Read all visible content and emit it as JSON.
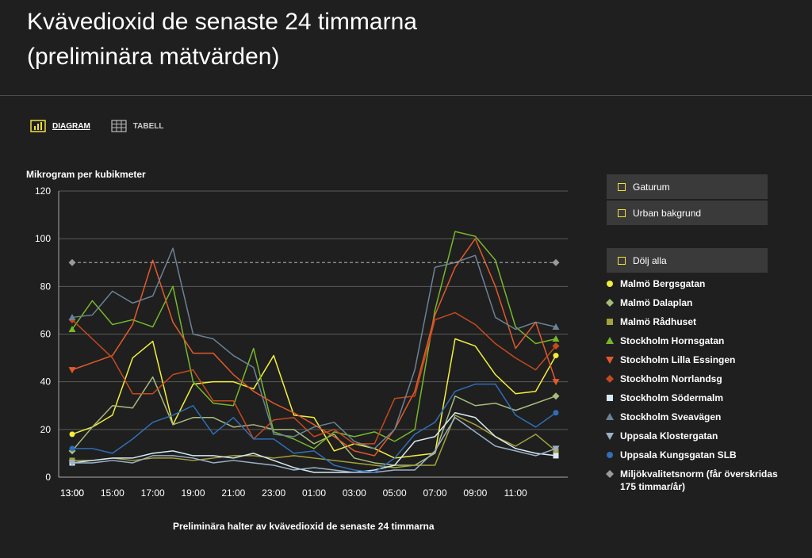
{
  "page": {
    "title_line1": "Kvävedioxid de senaste 24 timmarna",
    "title_line2": "(preliminära mätvärden)"
  },
  "tabs": [
    {
      "label": "DIAGRAM",
      "icon": "bar-chart-icon",
      "active": true
    },
    {
      "label": "TABELL",
      "icon": "table-icon",
      "active": false
    }
  ],
  "filters": [
    {
      "label": "Gaturum"
    },
    {
      "label": "Urban bakgrund"
    },
    {
      "label": "Dölj alla"
    }
  ],
  "chart_data": {
    "type": "line",
    "ylabel": "Mikrogram per kubikmeter",
    "caption": "Preliminära halter av kvävedioxid de senaste 24 timmarna",
    "ylim": [
      0,
      120
    ],
    "yticks": [
      0,
      20,
      40,
      60,
      80,
      100,
      120
    ],
    "x": [
      "13:00",
      "14:00",
      "15:00",
      "16:00",
      "17:00",
      "18:00",
      "19:00",
      "20:00",
      "21:00",
      "22:00",
      "23:00",
      "00:00",
      "01:00",
      "02:00",
      "03:00",
      "04:00",
      "05:00",
      "06:00",
      "07:00",
      "08:00",
      "09:00",
      "10:00",
      "11:00",
      "12:00",
      "13:00"
    ],
    "xticks": [
      "13:00",
      "15:00",
      "17:00",
      "19:00",
      "21:00",
      "23:00",
      "01:00",
      "03:00",
      "05:00",
      "07:00",
      "09:00",
      "11:00",
      "13:00"
    ],
    "grid": true,
    "series": [
      {
        "name": "Malmö Bergsgatan",
        "color": "#f2ef3c",
        "marker": "circle",
        "values": [
          18,
          21,
          26,
          50,
          57,
          22,
          39,
          40,
          40,
          37,
          51,
          26,
          25,
          11,
          14,
          12,
          8,
          9,
          10,
          58,
          55,
          43,
          35,
          36,
          51
        ]
      },
      {
        "name": "Malmö Dalaplan",
        "color": "#a9bb7c",
        "marker": "diamond",
        "values": [
          11,
          21,
          30,
          29,
          42,
          22,
          25,
          25,
          21,
          22,
          20,
          20,
          14,
          18,
          8,
          6,
          5,
          5,
          10,
          34,
          30,
          31,
          28,
          31,
          34
        ]
      },
      {
        "name": "Malmö Rådhuset",
        "color": "#a4a23c",
        "marker": "square",
        "values": [
          7,
          7,
          8,
          7,
          8,
          8,
          7,
          8,
          9,
          9,
          8,
          9,
          8,
          7,
          6,
          5,
          4,
          5,
          5,
          26,
          22,
          17,
          13,
          18,
          11
        ]
      },
      {
        "name": "Stockholm Hornsgatan",
        "color": "#76b82a",
        "marker": "triangle-up",
        "values": [
          62,
          74,
          64,
          66,
          63,
          80,
          40,
          31,
          30,
          54,
          19,
          16,
          12,
          19,
          17,
          19,
          15,
          20,
          70,
          103,
          101,
          91,
          63,
          56,
          58
        ]
      },
      {
        "name": "Stockholm Lilla Essingen",
        "color": "#e25a2b",
        "marker": "triangle-down",
        "values": [
          45,
          48,
          51,
          64,
          91,
          65,
          52,
          52,
          43,
          36,
          31,
          27,
          22,
          17,
          11,
          9,
          20,
          36,
          68,
          88,
          100,
          80,
          54,
          65,
          40
        ]
      },
      {
        "name": "Stockholm Norrlandsg",
        "color": "#c44a1f",
        "marker": "diamond",
        "values": [
          66,
          58,
          50,
          35,
          35,
          43,
          45,
          32,
          32,
          16,
          24,
          25,
          17,
          20,
          14,
          14,
          33,
          34,
          66,
          69,
          64,
          56,
          50,
          45,
          55
        ]
      },
      {
        "name": "Stockholm Södermalm",
        "color": "#d8eaf4",
        "marker": "square",
        "values": [
          6,
          7,
          8,
          8,
          10,
          11,
          9,
          9,
          8,
          10,
          7,
          4,
          2,
          2,
          2,
          3,
          5,
          15,
          17,
          27,
          25,
          17,
          12,
          10,
          9
        ]
      },
      {
        "name": "Stockholm Sveavägen",
        "color": "#6c8296",
        "marker": "triangle-up",
        "values": [
          67,
          68,
          78,
          73,
          76,
          96,
          60,
          58,
          51,
          46,
          18,
          17,
          21,
          23,
          15,
          12,
          20,
          45,
          88,
          90,
          93,
          67,
          62,
          65,
          63
        ]
      },
      {
        "name": "Uppsala Klostergatan",
        "color": "#9ab0c8",
        "marker": "triangle-down",
        "values": [
          6,
          6,
          7,
          6,
          9,
          9,
          8,
          6,
          7,
          6,
          5,
          3,
          4,
          3,
          2,
          2,
          3,
          3,
          11,
          25,
          19,
          13,
          11,
          9,
          12
        ]
      },
      {
        "name": "Uppsala Kungsgatan SLB",
        "color": "#2f6fb6",
        "marker": "circle",
        "values": [
          12,
          12,
          10,
          16,
          23,
          26,
          30,
          18,
          25,
          16,
          16,
          10,
          11,
          5,
          3,
          2,
          8,
          18,
          23,
          36,
          39,
          39,
          26,
          21,
          27
        ]
      },
      {
        "name": "Miljökvalitetsnorm (får överskridas 175 timmar/år)",
        "color": "#9a9a9a",
        "marker": "diamond",
        "dashed": true,
        "values": [
          90,
          90,
          90,
          90,
          90,
          90,
          90,
          90,
          90,
          90,
          90,
          90,
          90,
          90,
          90,
          90,
          90,
          90,
          90,
          90,
          90,
          90,
          90,
          90,
          90
        ]
      }
    ]
  }
}
